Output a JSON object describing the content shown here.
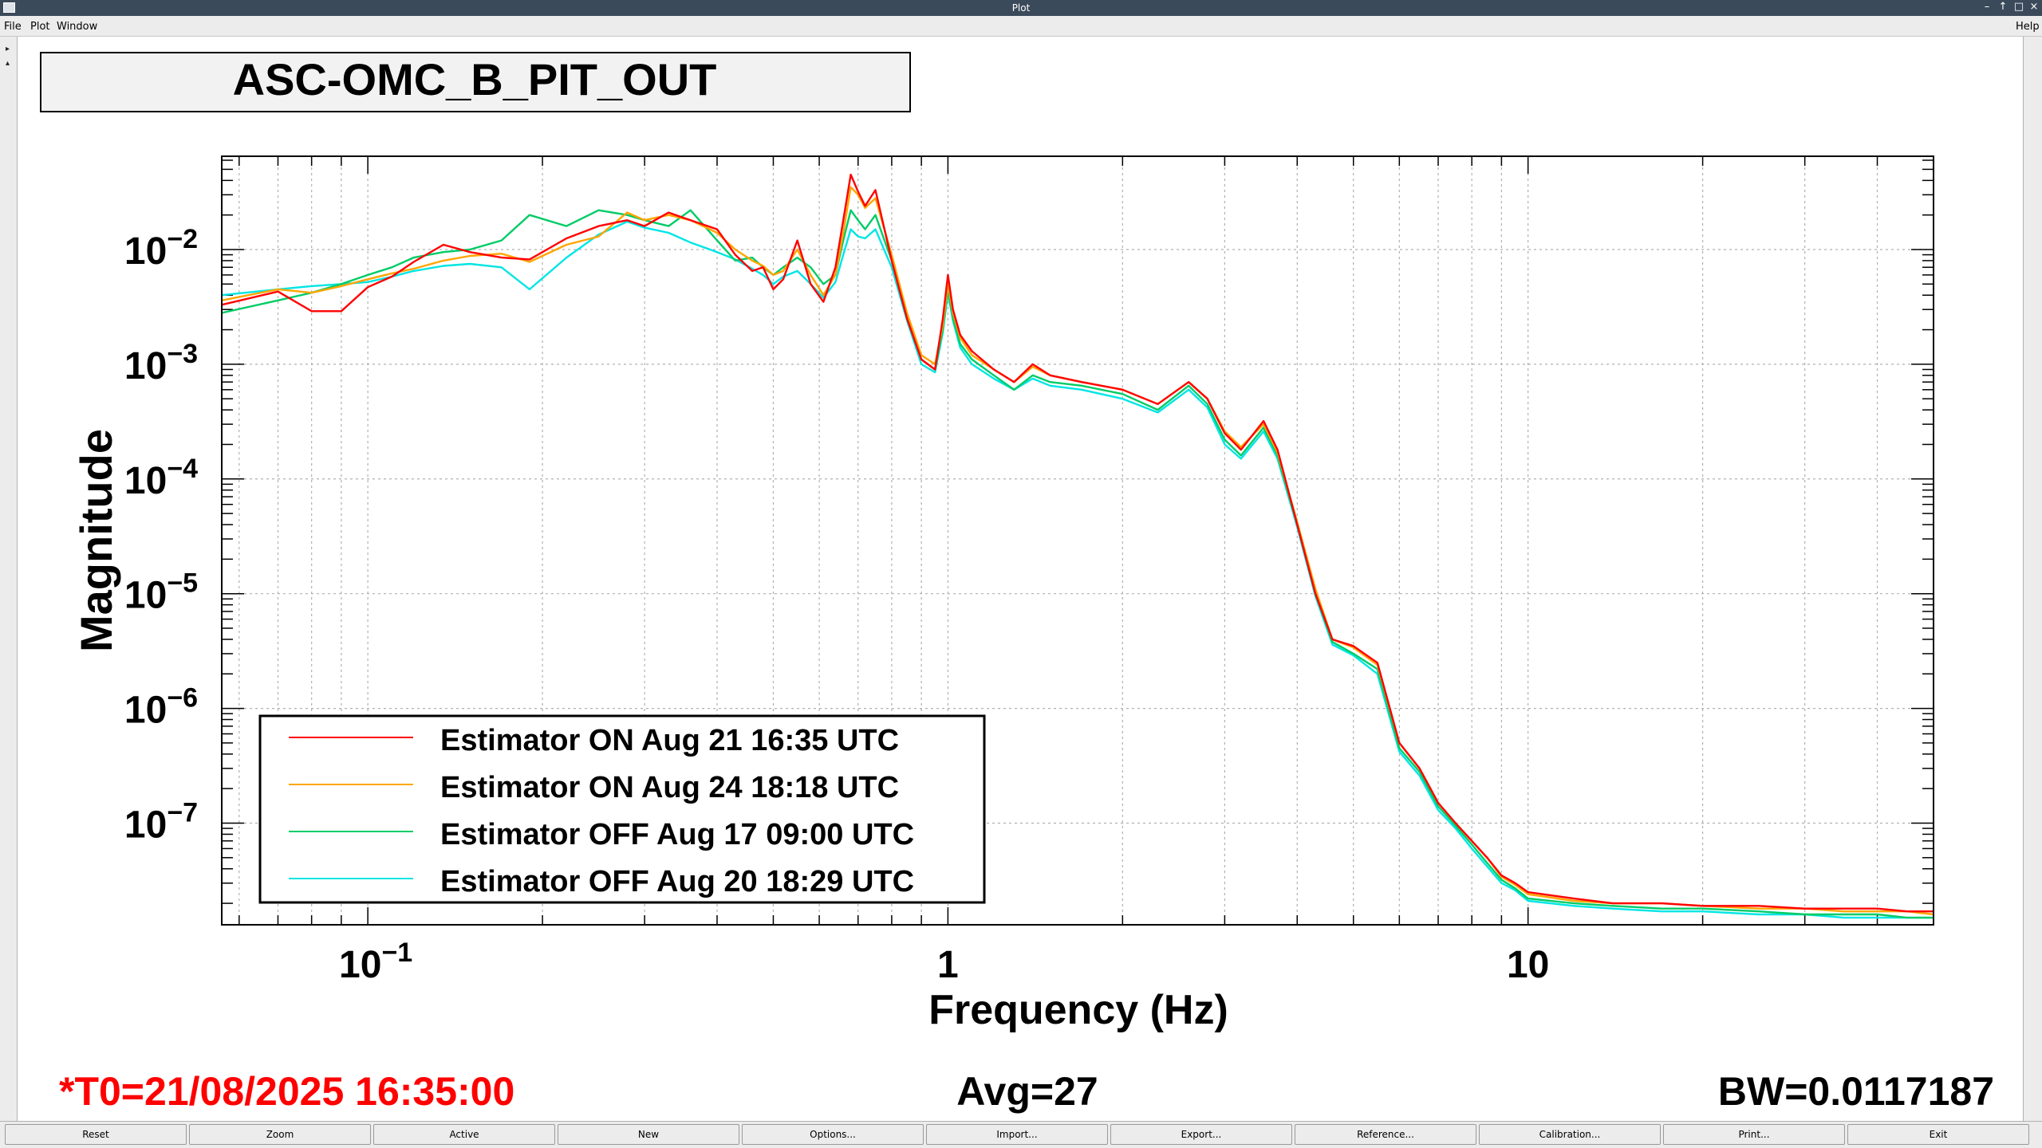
{
  "window": {
    "title": "Plot",
    "menus": [
      "File",
      "Plot",
      "Window"
    ],
    "help": "Help"
  },
  "plot_title": "ASC-OMC_B_PIT_OUT",
  "footer": {
    "t0": "*T0=21/08/2025 16:35:00",
    "avg": "Avg=27",
    "bw": "BW=0.0117187"
  },
  "buttons": [
    "Reset",
    "Zoom",
    "Active",
    "New",
    "Options...",
    "Import...",
    "Export...",
    "Reference...",
    "Calibration...",
    "Print...",
    "Exit"
  ],
  "colors": {
    "t0_text": "#ff0000",
    "series_red": "#ff0000",
    "series_orange": "#ffa500",
    "series_green": "#00cc66",
    "series_cyan": "#00e5e5"
  },
  "chart_data": {
    "type": "line",
    "xlabel": "Frequency (Hz)",
    "ylabel": "Magnitude",
    "xscale": "log",
    "yscale": "log",
    "xlim": [
      0.056,
      50
    ],
    "ylim": [
      1.3e-08,
      0.065
    ],
    "grid": true,
    "legend_position": "bottom-left",
    "x_ticks": [
      {
        "value": 0.1,
        "base": "10",
        "exp": "−1"
      },
      {
        "value": 1,
        "base": "1",
        "exp": ""
      },
      {
        "value": 10,
        "base": "10",
        "exp": ""
      }
    ],
    "y_ticks": [
      {
        "value": 0.01,
        "base": "10",
        "exp": "−2"
      },
      {
        "value": 0.001,
        "base": "10",
        "exp": "−3"
      },
      {
        "value": 0.0001,
        "base": "10",
        "exp": "−4"
      },
      {
        "value": 1e-05,
        "base": "10",
        "exp": "−5"
      },
      {
        "value": 1e-06,
        "base": "10",
        "exp": "−6"
      },
      {
        "value": 1e-07,
        "base": "10",
        "exp": "−7"
      }
    ],
    "series": [
      {
        "name": "Estimator ON Aug 21 16:35 UTC",
        "color": "#ff0000",
        "x": [
          0.056,
          0.07,
          0.08,
          0.09,
          0.1,
          0.11,
          0.12,
          0.135,
          0.15,
          0.17,
          0.19,
          0.22,
          0.25,
          0.28,
          0.3,
          0.33,
          0.36,
          0.4,
          0.43,
          0.46,
          0.48,
          0.5,
          0.52,
          0.55,
          0.58,
          0.61,
          0.64,
          0.66,
          0.68,
          0.7,
          0.72,
          0.75,
          0.8,
          0.85,
          0.9,
          0.95,
          0.98,
          1.0,
          1.02,
          1.05,
          1.1,
          1.2,
          1.3,
          1.4,
          1.5,
          1.7,
          2.0,
          2.3,
          2.6,
          2.8,
          3.0,
          3.2,
          3.5,
          3.7,
          4.0,
          4.3,
          4.6,
          5.0,
          5.5,
          6.0,
          6.5,
          7.0,
          7.5,
          8.0,
          8.5,
          9.0,
          9.5,
          10,
          12,
          14,
          17,
          20,
          25,
          30,
          35,
          40,
          45,
          50
        ],
        "y": [
          0.0033,
          0.0043,
          0.0029,
          0.0029,
          0.0047,
          0.0058,
          0.0078,
          0.011,
          0.0095,
          0.0085,
          0.0082,
          0.0125,
          0.016,
          0.018,
          0.016,
          0.021,
          0.018,
          0.015,
          0.009,
          0.0065,
          0.007,
          0.0045,
          0.0055,
          0.012,
          0.005,
          0.0035,
          0.007,
          0.018,
          0.045,
          0.032,
          0.024,
          0.033,
          0.008,
          0.0025,
          0.0011,
          0.0009,
          0.0025,
          0.006,
          0.003,
          0.0018,
          0.0013,
          0.0009,
          0.0007,
          0.001,
          0.0008,
          0.0007,
          0.0006,
          0.00045,
          0.0007,
          0.0005,
          0.00025,
          0.00018,
          0.00032,
          0.00018,
          4e-05,
          1e-05,
          4e-06,
          3.5e-06,
          2.5e-06,
          5e-07,
          3e-07,
          1.5e-07,
          1e-07,
          7e-08,
          5e-08,
          3.5e-08,
          3e-08,
          2.5e-08,
          2.2e-08,
          2e-08,
          2e-08,
          1.9e-08,
          1.9e-08,
          1.8e-08,
          1.8e-08,
          1.8e-08,
          1.7e-08,
          1.7e-08
        ]
      },
      {
        "name": "Estimator ON Aug 24 18:18 UTC",
        "color": "#ffa500",
        "x": [
          0.056,
          0.07,
          0.08,
          0.09,
          0.1,
          0.11,
          0.12,
          0.135,
          0.15,
          0.17,
          0.19,
          0.22,
          0.25,
          0.28,
          0.3,
          0.33,
          0.36,
          0.4,
          0.43,
          0.46,
          0.48,
          0.5,
          0.52,
          0.55,
          0.58,
          0.61,
          0.64,
          0.66,
          0.68,
          0.7,
          0.72,
          0.75,
          0.8,
          0.85,
          0.9,
          0.95,
          0.98,
          1.0,
          1.02,
          1.05,
          1.1,
          1.2,
          1.3,
          1.4,
          1.5,
          1.7,
          2.0,
          2.3,
          2.6,
          2.8,
          3.0,
          3.2,
          3.5,
          3.7,
          4.0,
          4.3,
          4.6,
          5.0,
          5.5,
          6.0,
          6.5,
          7.0,
          7.5,
          8.0,
          8.5,
          9.0,
          9.5,
          10,
          12,
          14,
          17,
          20,
          25,
          30,
          35,
          40,
          45,
          50
        ],
        "y": [
          0.0036,
          0.0045,
          0.0042,
          0.0048,
          0.0055,
          0.0062,
          0.0068,
          0.008,
          0.0088,
          0.0092,
          0.0078,
          0.011,
          0.013,
          0.021,
          0.018,
          0.02,
          0.018,
          0.014,
          0.01,
          0.008,
          0.0072,
          0.006,
          0.0065,
          0.01,
          0.006,
          0.004,
          0.006,
          0.014,
          0.035,
          0.03,
          0.023,
          0.028,
          0.009,
          0.0028,
          0.0012,
          0.001,
          0.0022,
          0.005,
          0.0028,
          0.0017,
          0.0012,
          0.0009,
          0.0007,
          0.00095,
          0.0008,
          0.0007,
          0.0006,
          0.00045,
          0.0007,
          0.0005,
          0.00026,
          0.00019,
          0.0003,
          0.00017,
          4.2e-05,
          1.1e-05,
          4e-06,
          3.4e-06,
          2.4e-06,
          5e-07,
          3e-07,
          1.5e-07,
          1e-07,
          7e-08,
          5e-08,
          3.4e-08,
          2.9e-08,
          2.4e-08,
          2.1e-08,
          2e-08,
          2e-08,
          1.9e-08,
          1.8e-08,
          1.8e-08,
          1.7e-08,
          1.7e-08,
          1.7e-08,
          1.6e-08
        ]
      },
      {
        "name": "Estimator OFF Aug 17 09:00 UTC",
        "color": "#00cc66",
        "x": [
          0.056,
          0.07,
          0.08,
          0.09,
          0.1,
          0.11,
          0.12,
          0.135,
          0.15,
          0.17,
          0.19,
          0.22,
          0.25,
          0.28,
          0.3,
          0.33,
          0.36,
          0.4,
          0.43,
          0.46,
          0.48,
          0.5,
          0.52,
          0.55,
          0.58,
          0.61,
          0.64,
          0.66,
          0.68,
          0.7,
          0.72,
          0.75,
          0.8,
          0.85,
          0.9,
          0.95,
          0.98,
          1.0,
          1.02,
          1.05,
          1.1,
          1.2,
          1.3,
          1.4,
          1.5,
          1.7,
          2.0,
          2.3,
          2.6,
          2.8,
          3.0,
          3.2,
          3.5,
          3.7,
          4.0,
          4.3,
          4.6,
          5.0,
          5.5,
          6.0,
          6.5,
          7.0,
          7.5,
          8.0,
          8.5,
          9.0,
          9.5,
          10,
          12,
          14,
          17,
          20,
          25,
          30,
          35,
          40,
          45,
          50
        ],
        "y": [
          0.0028,
          0.0036,
          0.0042,
          0.005,
          0.006,
          0.007,
          0.0085,
          0.0095,
          0.01,
          0.012,
          0.02,
          0.016,
          0.022,
          0.02,
          0.018,
          0.016,
          0.022,
          0.012,
          0.008,
          0.0085,
          0.007,
          0.006,
          0.007,
          0.0085,
          0.007,
          0.005,
          0.006,
          0.012,
          0.022,
          0.018,
          0.015,
          0.02,
          0.008,
          0.0025,
          0.0011,
          0.0009,
          0.002,
          0.0045,
          0.0025,
          0.0015,
          0.0011,
          0.0008,
          0.0006,
          0.0008,
          0.0007,
          0.00065,
          0.00055,
          0.0004,
          0.00065,
          0.00045,
          0.00022,
          0.00016,
          0.00028,
          0.00016,
          4e-05,
          1e-05,
          3.8e-06,
          3e-06,
          2.2e-06,
          4.5e-07,
          2.8e-07,
          1.4e-07,
          9.5e-08,
          6.5e-08,
          4.5e-08,
          3.2e-08,
          2.7e-08,
          2.2e-08,
          2e-08,
          1.9e-08,
          1.8e-08,
          1.8e-08,
          1.7e-08,
          1.6e-08,
          1.6e-08,
          1.6e-08,
          1.5e-08,
          1.5e-08
        ]
      },
      {
        "name": "Estimator OFF Aug 20 18:29 UTC",
        "color": "#00e5e5",
        "x": [
          0.056,
          0.07,
          0.08,
          0.09,
          0.1,
          0.11,
          0.12,
          0.135,
          0.15,
          0.17,
          0.19,
          0.22,
          0.25,
          0.28,
          0.3,
          0.33,
          0.36,
          0.4,
          0.43,
          0.46,
          0.48,
          0.5,
          0.52,
          0.55,
          0.58,
          0.61,
          0.64,
          0.66,
          0.68,
          0.7,
          0.72,
          0.75,
          0.8,
          0.85,
          0.9,
          0.95,
          0.98,
          1.0,
          1.02,
          1.05,
          1.1,
          1.2,
          1.3,
          1.4,
          1.5,
          1.7,
          2.0,
          2.3,
          2.6,
          2.8,
          3.0,
          3.2,
          3.5,
          3.7,
          4.0,
          4.3,
          4.6,
          5.0,
          5.5,
          6.0,
          6.5,
          7.0,
          7.5,
          8.0,
          8.5,
          9.0,
          9.5,
          10,
          12,
          14,
          17,
          20,
          25,
          30,
          35,
          40,
          45,
          50
        ],
        "y": [
          0.004,
          0.0045,
          0.0048,
          0.005,
          0.0052,
          0.0058,
          0.0065,
          0.0072,
          0.0075,
          0.007,
          0.0045,
          0.0085,
          0.0135,
          0.0175,
          0.0155,
          0.014,
          0.0115,
          0.0095,
          0.0082,
          0.0068,
          0.006,
          0.005,
          0.0058,
          0.0065,
          0.005,
          0.0038,
          0.0052,
          0.009,
          0.015,
          0.013,
          0.0125,
          0.015,
          0.007,
          0.0024,
          0.001,
          0.00085,
          0.0019,
          0.0042,
          0.0024,
          0.0014,
          0.001,
          0.00075,
          0.0006,
          0.00075,
          0.00065,
          0.0006,
          0.0005,
          0.00038,
          0.0006,
          0.00042,
          0.0002,
          0.00015,
          0.00026,
          0.00015,
          3.8e-05,
          9.5e-06,
          3.6e-06,
          2.9e-06,
          2e-06,
          4.2e-07,
          2.6e-07,
          1.3e-07,
          9e-08,
          6e-08,
          4.2e-08,
          3e-08,
          2.6e-08,
          2.1e-08,
          1.9e-08,
          1.8e-08,
          1.7e-08,
          1.7e-08,
          1.6e-08,
          1.6e-08,
          1.5e-08,
          1.5e-08,
          1.5e-08,
          1.5e-08
        ]
      }
    ]
  }
}
